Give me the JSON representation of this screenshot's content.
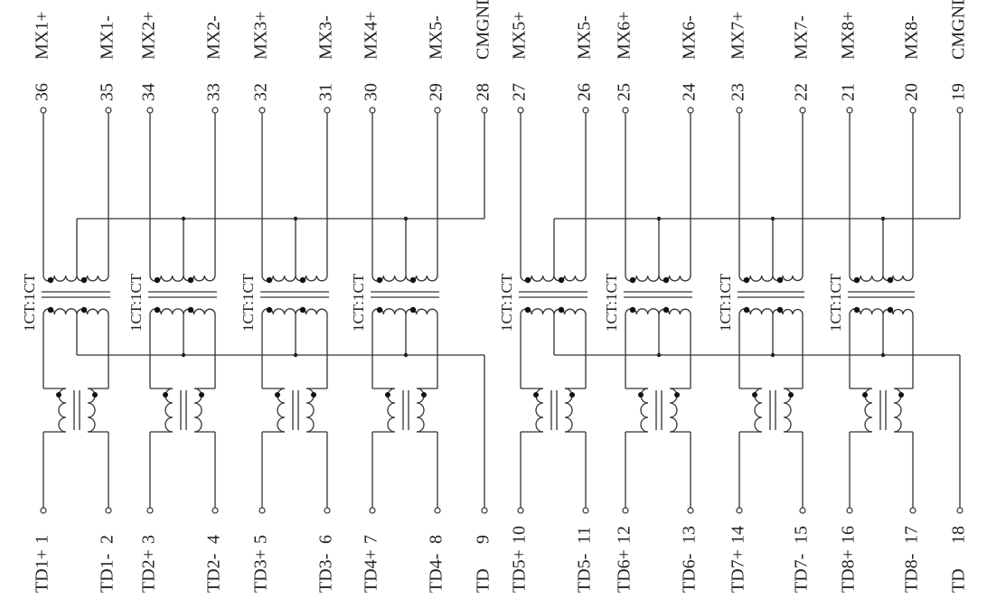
{
  "top_pins": [
    {
      "number": "36",
      "name": "MX1+"
    },
    {
      "number": "35",
      "name": "MX1-"
    },
    {
      "number": "34",
      "name": "MX2+"
    },
    {
      "number": "33",
      "name": "MX2-"
    },
    {
      "number": "32",
      "name": "MX3+"
    },
    {
      "number": "31",
      "name": "MX3-"
    },
    {
      "number": "30",
      "name": "MX4+"
    },
    {
      "number": "29",
      "name": "MX5-"
    },
    {
      "number": "28",
      "name": "CMGND"
    },
    {
      "number": "27",
      "name": "MX5+"
    },
    {
      "number": "26",
      "name": "MX5-"
    },
    {
      "number": "25",
      "name": "MX6+"
    },
    {
      "number": "24",
      "name": "MX6-"
    },
    {
      "number": "23",
      "name": "MX7+"
    },
    {
      "number": "22",
      "name": "MX7-"
    },
    {
      "number": "21",
      "name": "MX8+"
    },
    {
      "number": "20",
      "name": "MX8-"
    },
    {
      "number": "19",
      "name": "CMGND"
    }
  ],
  "bottom_pins": [
    {
      "name": "TD1+",
      "number": "1"
    },
    {
      "name": "TD1-",
      "number": "2"
    },
    {
      "name": "TD2+",
      "number": "3"
    },
    {
      "name": "TD2-",
      "number": "4"
    },
    {
      "name": "TD3+",
      "number": "5"
    },
    {
      "name": "TD3-",
      "number": "6"
    },
    {
      "name": "TD4+",
      "number": "7"
    },
    {
      "name": "TD4-",
      "number": "8"
    },
    {
      "name": "TD",
      "number": "9"
    },
    {
      "name": "TD5+",
      "number": "10"
    },
    {
      "name": "TD5-",
      "number": "11"
    },
    {
      "name": "TD6+",
      "number": "12"
    },
    {
      "name": "TD6-",
      "number": "13"
    },
    {
      "name": "TD7+",
      "number": "14"
    },
    {
      "name": "TD7-",
      "number": "15"
    },
    {
      "name": "TD8+",
      "number": "16"
    },
    {
      "name": "TD8-",
      "number": "17"
    },
    {
      "name": "TD",
      "number": "18"
    }
  ],
  "transformer_labels": [
    "1CT:1CT",
    "1CT:1CT",
    "1CT:1CT",
    "1CT:1CT",
    "1CT:1CT",
    "1CT:1CT",
    "1CT:1CT",
    "1CT:1CT"
  ]
}
